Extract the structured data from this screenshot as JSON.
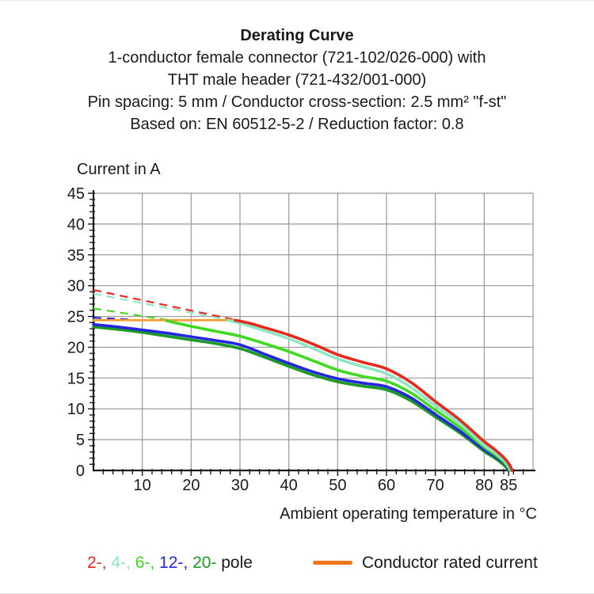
{
  "chart_data": {
    "type": "line",
    "title": "Derating Curve",
    "subtitle_lines": [
      "1-conductor female connector (721-102/026-000) with",
      "THT male header (721-432/001-000)",
      "Pin spacing: 5 mm / Conductor cross-section: 2.5 mm² \"f-st\"",
      "Based on: EN 60512-5-2 / Reduction factor: 0.8"
    ],
    "ylabel": "Current in A",
    "xlabel": "Ambient operating temperature in °C",
    "xlim": [
      0,
      90
    ],
    "ylim": [
      0,
      45
    ],
    "grid": {
      "on": true,
      "x_step": 10,
      "y_step": 5,
      "color": "#999999"
    },
    "x_minor_tick_step": 2,
    "y_minor_tick_step": 1,
    "x_tick_labels": [
      10,
      20,
      30,
      40,
      50,
      60,
      70,
      80,
      85
    ],
    "y_tick_labels": [
      0,
      5,
      10,
      15,
      20,
      25,
      30,
      35,
      40,
      45
    ],
    "axis_color": "#1a1a1a",
    "rated_current_line": {
      "label": "Conductor rated current",
      "y": 24.4,
      "x_range": [
        0,
        29
      ],
      "line_color": "#f59d33",
      "legend_swatch_color": "#ee7518"
    },
    "series": [
      {
        "name": "2-pole",
        "legend_label": "2-,",
        "color": "#e8291c",
        "dashed_points": [
          [
            0,
            29.3
          ],
          [
            29,
            24.45
          ]
        ],
        "solid_points": [
          [
            29,
            24.4
          ],
          [
            32,
            23.9
          ],
          [
            35,
            23.2
          ],
          [
            40,
            22.0
          ],
          [
            45,
            20.5
          ],
          [
            50,
            18.8
          ],
          [
            55,
            17.6
          ],
          [
            60,
            16.5
          ],
          [
            65,
            14.3
          ],
          [
            70,
            11.2
          ],
          [
            75,
            8.2
          ],
          [
            80,
            4.7
          ],
          [
            82,
            3.5
          ],
          [
            84,
            2.1
          ],
          [
            85.2,
            0.9
          ],
          [
            85.7,
            0
          ]
        ]
      },
      {
        "name": "4-pole",
        "legend_label": "4-,",
        "color": "#8ce7c2",
        "dashed_points": [
          [
            0,
            28.7
          ],
          [
            27.5,
            24.45
          ]
        ],
        "solid_points": [
          [
            27.5,
            24.4
          ],
          [
            30,
            23.9
          ],
          [
            35,
            22.7
          ],
          [
            40,
            21.4
          ],
          [
            45,
            19.8
          ],
          [
            50,
            18.1
          ],
          [
            55,
            16.9
          ],
          [
            60,
            15.7
          ],
          [
            65,
            13.5
          ],
          [
            70,
            10.5
          ],
          [
            75,
            7.6
          ],
          [
            80,
            4.1
          ],
          [
            82,
            3.0
          ],
          [
            84,
            1.7
          ],
          [
            85,
            0.7
          ],
          [
            85.5,
            0
          ]
        ]
      },
      {
        "name": "6-pole",
        "legend_label": "6-,",
        "color": "#3fda20",
        "dashed_points": [
          [
            0,
            26.3
          ],
          [
            15,
            24.45
          ]
        ],
        "solid_points": [
          [
            15,
            24.3
          ],
          [
            20,
            23.4
          ],
          [
            25,
            22.6
          ],
          [
            30,
            21.8
          ],
          [
            35,
            20.6
          ],
          [
            40,
            19.3
          ],
          [
            45,
            17.8
          ],
          [
            50,
            16.3
          ],
          [
            55,
            15.3
          ],
          [
            60,
            14.5
          ],
          [
            65,
            12.6
          ],
          [
            70,
            9.8
          ],
          [
            75,
            7.0
          ],
          [
            80,
            3.8
          ],
          [
            82,
            2.7
          ],
          [
            84,
            1.4
          ],
          [
            85.3,
            0
          ]
        ]
      },
      {
        "name": "12-pole",
        "legend_label": "12-,",
        "color": "#2527e0",
        "dashed_points": [
          [
            0,
            24.8
          ],
          [
            8,
            24.5
          ]
        ],
        "solid_points": [
          [
            0,
            23.7
          ],
          [
            5,
            23.3
          ],
          [
            10,
            22.8
          ],
          [
            15,
            22.3
          ],
          [
            20,
            21.7
          ],
          [
            25,
            21.1
          ],
          [
            30,
            20.4
          ],
          [
            35,
            18.9
          ],
          [
            40,
            17.4
          ],
          [
            45,
            16.0
          ],
          [
            50,
            14.9
          ],
          [
            55,
            14.2
          ],
          [
            60,
            13.6
          ],
          [
            65,
            11.8
          ],
          [
            70,
            9.1
          ],
          [
            75,
            6.4
          ],
          [
            80,
            3.4
          ],
          [
            82,
            2.4
          ],
          [
            84,
            1.2
          ],
          [
            85.1,
            0
          ]
        ]
      },
      {
        "name": "20-pole",
        "legend_label": "20-",
        "color": "#1c9a22",
        "dashed_points": null,
        "solid_points": [
          [
            0,
            23.3
          ],
          [
            5,
            22.9
          ],
          [
            10,
            22.4
          ],
          [
            15,
            21.8
          ],
          [
            20,
            21.2
          ],
          [
            25,
            20.6
          ],
          [
            30,
            19.8
          ],
          [
            35,
            18.4
          ],
          [
            40,
            16.9
          ],
          [
            45,
            15.5
          ],
          [
            50,
            14.4
          ],
          [
            55,
            13.7
          ],
          [
            60,
            13.1
          ],
          [
            65,
            11.3
          ],
          [
            70,
            8.7
          ],
          [
            75,
            6.1
          ],
          [
            80,
            3.1
          ],
          [
            82,
            2.1
          ],
          [
            84,
            0.9
          ],
          [
            85,
            0
          ]
        ]
      }
    ],
    "legend": {
      "pole_suffix": " pole"
    }
  }
}
